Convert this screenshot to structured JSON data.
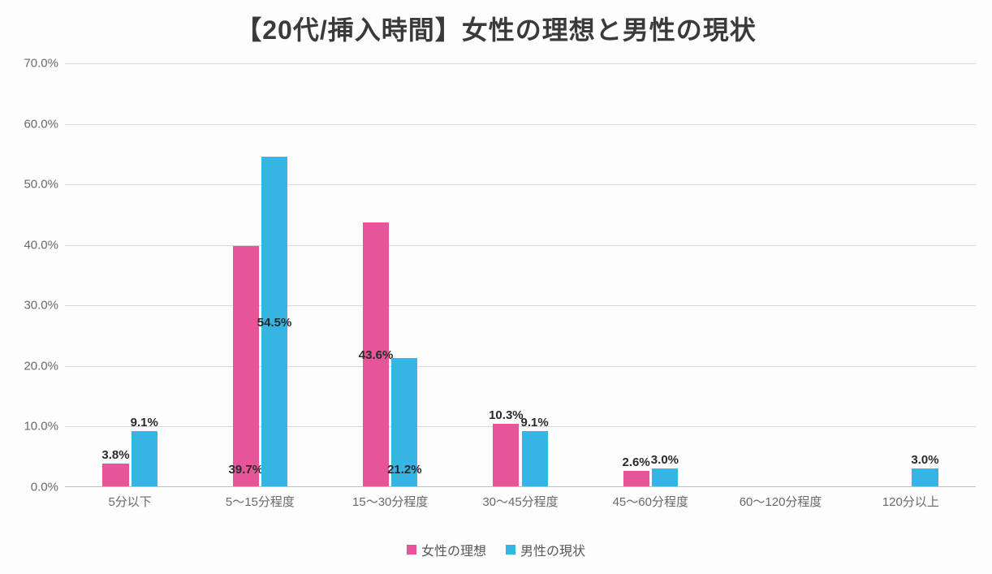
{
  "chart": {
    "type": "bar",
    "title": "【20代/挿入時間】女性の理想と男性の現状",
    "background_color": "#fdfdfd",
    "grid_color": "#d9d9d9",
    "text_color": "#696969",
    "title_color": "#3a3a3a",
    "title_fontsize": 32,
    "label_fontsize": 15,
    "data_label_fontsize": 15,
    "legend_fontsize": 16,
    "categories": [
      "5分以下",
      "5～15分程度",
      "15～30分程度",
      "30～45分程度",
      "45～60分程度",
      "60～120分程度",
      "120分以上"
    ],
    "ylim": [
      0,
      70
    ],
    "ytick_step": 10,
    "ytick_format": "percent_one_decimal",
    "ytick_labels": [
      "0.0%",
      "10.0%",
      "20.0%",
      "30.0%",
      "40.0%",
      "50.0%",
      "60.0%",
      "70.0%"
    ],
    "bar_gap": 0.02,
    "group_width": 0.42,
    "series": [
      {
        "name": "女性の理想",
        "color": "#e8549a",
        "values": [
          3.8,
          39.7,
          43.6,
          10.3,
          2.6,
          0.0,
          0.0
        ],
        "labels": [
          "3.8%",
          "39.7%",
          "43.6%",
          "10.3%",
          "2.6%",
          "",
          ""
        ]
      },
      {
        "name": "男性の現状",
        "color": "#34b5e4",
        "values": [
          9.1,
          54.5,
          21.2,
          9.1,
          3.0,
          0.0,
          3.0
        ],
        "labels": [
          "9.1%",
          "54.5%",
          "21.2%",
          "9.1%",
          "3.0%",
          "",
          "3.0%"
        ]
      }
    ],
    "data_label_positions": {
      "0": {
        "女性の理想": "below",
        "男性の現状": "below"
      },
      "1": {
        "女性の理想": "inside_low",
        "男性の現状": "inside_mid"
      },
      "2": {
        "女性の理想": "inside_mid",
        "男性の現状": "inside_low"
      },
      "3": {
        "女性の理想": "below",
        "男性の現状": "below"
      },
      "4": {
        "女性の理想": "below",
        "男性の現状": "below"
      },
      "6": {
        "男性の現状": "below"
      }
    },
    "legend": {
      "position": "bottom",
      "items": [
        "女性の理想",
        "男性の現状"
      ]
    }
  }
}
